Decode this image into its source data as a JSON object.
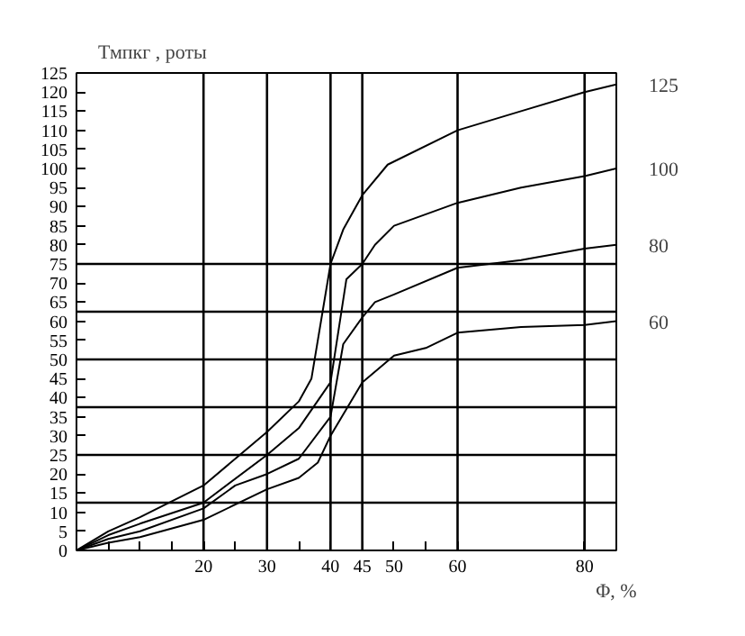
{
  "chart_data": {
    "type": "line",
    "ylabel": "Тмпкг , роты",
    "xlabel": "Φ, %",
    "xlim": [
      0,
      85
    ],
    "ylim": [
      0,
      125
    ],
    "xticks": [
      {
        "value": 5,
        "label": null
      },
      {
        "value": 10,
        "label": null
      },
      {
        "value": 15,
        "label": null
      },
      20,
      {
        "value": 25,
        "label": null
      },
      30,
      {
        "value": 35,
        "label": null
      },
      40,
      45,
      50,
      {
        "value": 55,
        "label": null
      },
      60,
      80
    ],
    "yticks": [
      0,
      5,
      10,
      15,
      20,
      25,
      30,
      35,
      40,
      45,
      50,
      55,
      60,
      65,
      70,
      75,
      80,
      85,
      90,
      95,
      100,
      105,
      110,
      115,
      120,
      125
    ],
    "grid": false,
    "marker": "none",
    "line_style": "solid",
    "ref_lines": [
      {
        "axis": "y",
        "value": 12.5
      },
      {
        "axis": "y",
        "value": 25
      },
      {
        "axis": "y",
        "value": 37.5
      },
      {
        "axis": "y",
        "value": 50
      },
      {
        "axis": "y",
        "value": 62.5
      },
      {
        "axis": "y",
        "value": 75
      },
      {
        "axis": "x",
        "value": 20
      },
      {
        "axis": "x",
        "value": 30
      },
      {
        "axis": "x",
        "value": 40
      },
      {
        "axis": "x",
        "value": 45
      },
      {
        "axis": "x",
        "value": 60
      },
      {
        "axis": "x",
        "value": 80
      }
    ],
    "series": [
      {
        "name": "125",
        "color": "#000000",
        "x": [
          0,
          5,
          10,
          20,
          30,
          35,
          37,
          40,
          42,
          45,
          49,
          60,
          70,
          80,
          85
        ],
        "values": [
          0,
          5,
          8.7,
          17,
          31,
          39,
          45,
          75,
          84,
          93,
          101,
          110,
          115,
          120,
          122
        ]
      },
      {
        "name": "100",
        "color": "#000000",
        "x": [
          0,
          5,
          10,
          20,
          30,
          35,
          40,
          42.5,
          45,
          47,
          50,
          60,
          70,
          80,
          85
        ],
        "values": [
          0,
          4,
          7,
          12.5,
          25,
          32,
          44,
          71,
          75,
          80,
          85,
          91,
          95,
          98,
          100
        ]
      },
      {
        "name": "80",
        "color": "#000000",
        "x": [
          0,
          5,
          10,
          20,
          25,
          30,
          35,
          40,
          42,
          45,
          47,
          50,
          60,
          70,
          80,
          85
        ],
        "values": [
          0,
          3,
          5,
          11,
          17,
          20,
          24,
          35,
          54,
          61,
          65,
          67,
          74,
          76,
          79,
          80
        ]
      },
      {
        "name": "60",
        "color": "#000000",
        "x": [
          0,
          5,
          10,
          20,
          30,
          35,
          38,
          40,
          45,
          50,
          55,
          60,
          70,
          80,
          85
        ],
        "values": [
          0,
          2,
          3.5,
          8,
          16,
          19,
          23,
          30,
          44,
          51,
          53,
          57,
          58.5,
          59,
          60
        ]
      }
    ]
  }
}
